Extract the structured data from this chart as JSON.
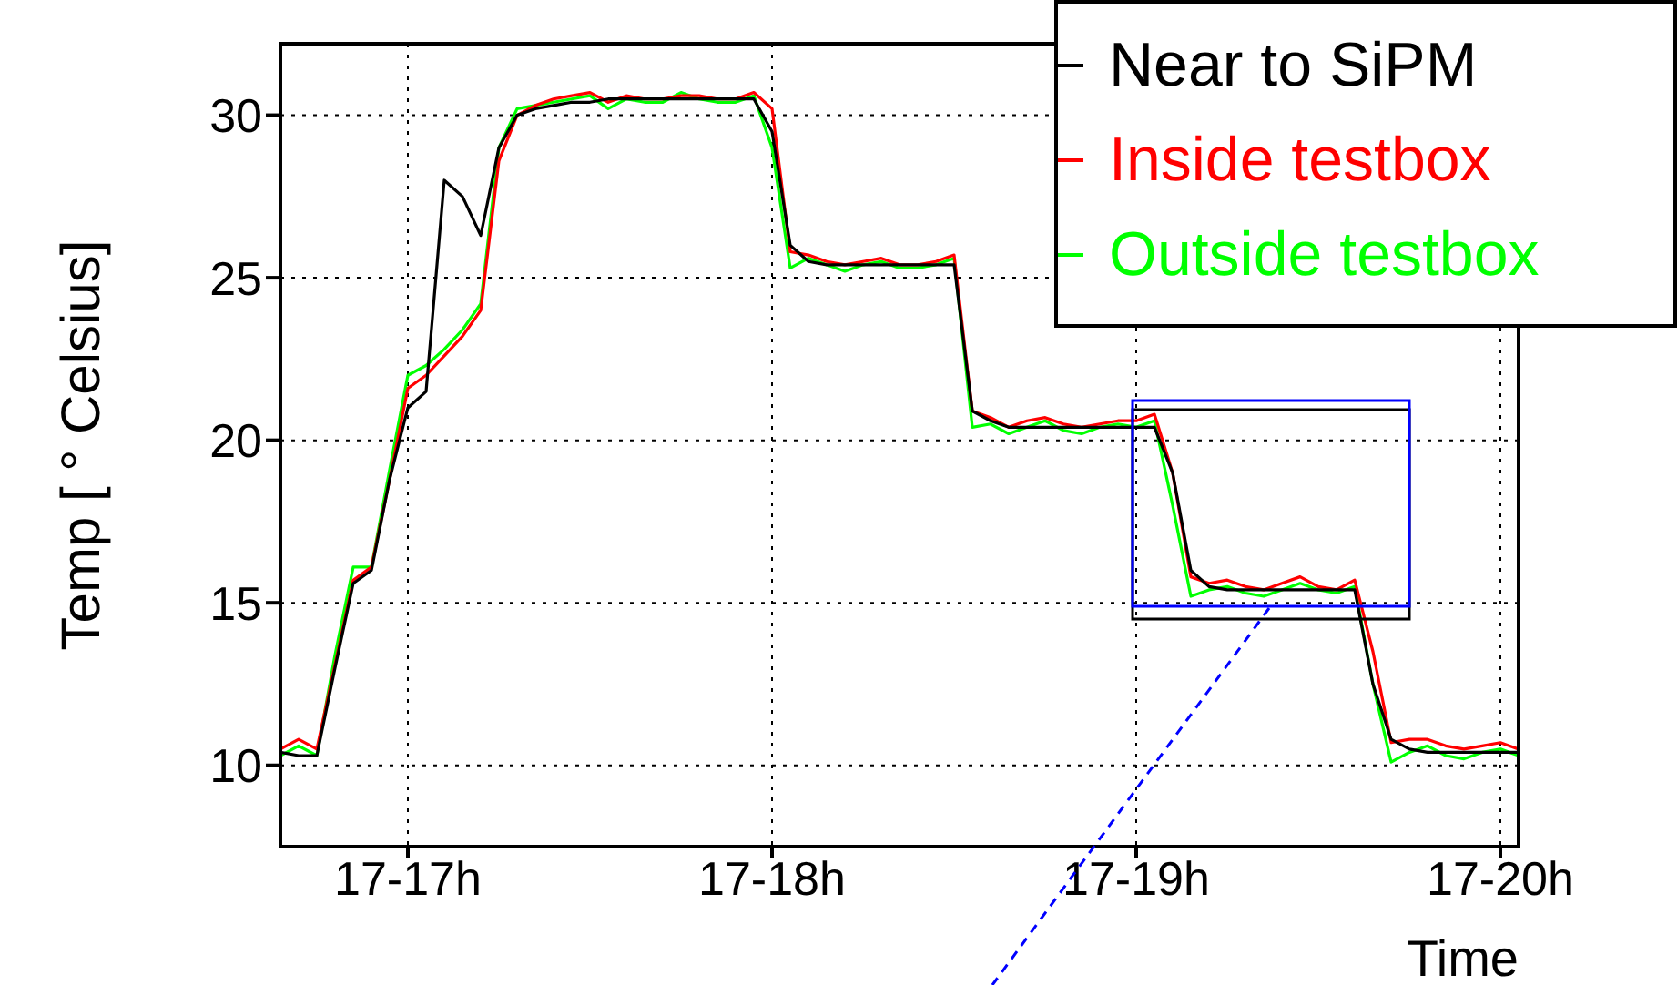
{
  "chart_data": {
    "type": "line",
    "xlabel": "Time",
    "ylabel": "Temp [ ° Celsius]",
    "categories": [
      null,
      null,
      null,
      null,
      null,
      null,
      null,
      "17-17h",
      null,
      null,
      null,
      null,
      null,
      null,
      null,
      null,
      null,
      null,
      null,
      null,
      null,
      null,
      null,
      null,
      null,
      null,
      null,
      "17-18h",
      null,
      null,
      null,
      null,
      null,
      null,
      null,
      null,
      null,
      null,
      null,
      null,
      null,
      null,
      null,
      null,
      null,
      null,
      null,
      "17-19h",
      null,
      null,
      null,
      null,
      null,
      null,
      null,
      null,
      null,
      null,
      null,
      null,
      null,
      null,
      null,
      null,
      null,
      null,
      null,
      "17-20h",
      null
    ],
    "ylim": [
      7.5,
      32.2
    ],
    "yticks": [
      10,
      15,
      20,
      25,
      30
    ],
    "grid": true,
    "legend": "top right",
    "marker": "none",
    "line_style": "solid",
    "series": [
      {
        "name": "Near to SiPM",
        "color": "#000000",
        "values": [
          10.4,
          10.3,
          10.3,
          13.0,
          15.6,
          16.0,
          18.8,
          21.0,
          21.5,
          28.0,
          27.5,
          26.3,
          29.0,
          30.0,
          30.2,
          30.3,
          30.4,
          30.4,
          30.5,
          30.5,
          30.5,
          30.5,
          30.5,
          30.5,
          30.5,
          30.5,
          30.5,
          29.5,
          26.0,
          25.5,
          25.4,
          25.4,
          25.4,
          25.4,
          25.4,
          25.4,
          25.4,
          25.4,
          20.9,
          20.6,
          20.4,
          20.4,
          20.4,
          20.4,
          20.4,
          20.4,
          20.4,
          20.4,
          20.4,
          19.0,
          16.0,
          15.5,
          15.4,
          15.4,
          15.4,
          15.4,
          15.4,
          15.4,
          15.4,
          15.4,
          12.5,
          10.8,
          10.5,
          10.4,
          10.4,
          10.4,
          10.4,
          10.4,
          10.4
        ]
      },
      {
        "name": "Inside testbox",
        "color": "#ff0000",
        "values": [
          10.5,
          10.8,
          10.5,
          13.1,
          15.7,
          16.1,
          18.8,
          21.6,
          22.0,
          22.6,
          23.2,
          24.0,
          28.6,
          30.0,
          30.3,
          30.5,
          30.6,
          30.7,
          30.4,
          30.6,
          30.5,
          30.5,
          30.6,
          30.6,
          30.5,
          30.5,
          30.7,
          30.2,
          25.8,
          25.7,
          25.5,
          25.4,
          25.5,
          25.6,
          25.4,
          25.4,
          25.5,
          25.7,
          20.9,
          20.7,
          20.4,
          20.6,
          20.7,
          20.5,
          20.4,
          20.5,
          20.6,
          20.6,
          20.8,
          19.0,
          15.8,
          15.6,
          15.7,
          15.5,
          15.4,
          15.6,
          15.8,
          15.5,
          15.4,
          15.7,
          13.5,
          10.7,
          10.8,
          10.8,
          10.6,
          10.5,
          10.6,
          10.7,
          10.5
        ]
      },
      {
        "name": "Outside testbox",
        "color": "#00ff00",
        "values": [
          10.3,
          10.6,
          10.3,
          13.4,
          16.1,
          16.1,
          19.1,
          22.0,
          22.3,
          22.8,
          23.4,
          24.2,
          29.0,
          30.2,
          30.3,
          30.4,
          30.5,
          30.6,
          30.2,
          30.5,
          30.4,
          30.4,
          30.7,
          30.5,
          30.4,
          30.4,
          30.6,
          29.0,
          25.3,
          25.6,
          25.4,
          25.2,
          25.4,
          25.5,
          25.3,
          25.3,
          25.4,
          25.6,
          20.4,
          20.5,
          20.2,
          20.4,
          20.6,
          20.3,
          20.2,
          20.4,
          20.5,
          20.4,
          20.6,
          18.0,
          15.2,
          15.4,
          15.5,
          15.3,
          15.2,
          15.4,
          15.6,
          15.4,
          15.3,
          15.5,
          12.5,
          10.1,
          10.4,
          10.6,
          10.3,
          10.2,
          10.4,
          10.5,
          10.3
        ]
      }
    ]
  }
}
